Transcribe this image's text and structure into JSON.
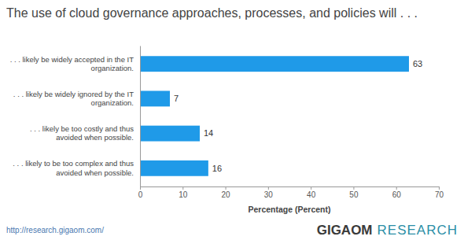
{
  "chart_data": {
    "type": "bar",
    "orientation": "horizontal",
    "title": "The use of cloud governance approaches, processes, and policies will . . .",
    "categories": [
      ". . . likely be widely accepted in the IT organization.",
      ". . . likely be widely ignored by the IT organization.",
      ". . . likely be too costly and thus avoided when possible.",
      ". . . likely to be too complex and thus avoided when possible."
    ],
    "values": [
      63,
      7,
      14,
      16
    ],
    "color": "#1f9ae8",
    "x_label": "Percentage (Percent)",
    "xlim": [
      0,
      70
    ],
    "xticks": [
      0,
      10,
      20,
      30,
      40,
      50,
      60,
      70
    ],
    "grid": false,
    "data_labels": true,
    "annotations": [
      "http://research.gigaom.com/",
      "GIGAOM",
      "RESEARCH"
    ]
  }
}
